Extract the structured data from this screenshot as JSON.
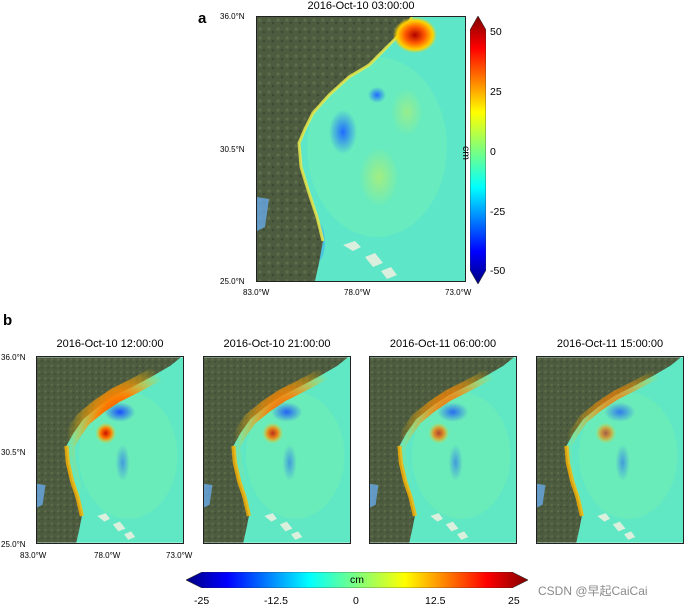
{
  "panel_a": {
    "letter": "a",
    "title": "2016-Oct-10 03:00:00",
    "lat_ticks": [
      "36.0°N",
      "30.5°N",
      "25.0°N"
    ],
    "lon_ticks": [
      "83.0°W",
      "78.0°W",
      "73.0°W"
    ],
    "colorbar": {
      "label": "cm",
      "ticks": [
        "50",
        "25",
        "0",
        "-25",
        "-50"
      ],
      "range": [
        -50,
        50
      ]
    },
    "surge_level": 1.0
  },
  "panel_b": {
    "letter": "b",
    "maps": [
      {
        "title": "2016-Oct-10 12:00:00",
        "surge_level": 1.0
      },
      {
        "title": "2016-Oct-10 21:00:00",
        "surge_level": 0.75
      },
      {
        "title": "2016-Oct-11 06:00:00",
        "surge_level": 0.6
      },
      {
        "title": "2016-Oct-11 15:00:00",
        "surge_level": 0.4
      }
    ],
    "lat_ticks": [
      "36.0°N",
      "30.5°N",
      "25.0°N"
    ],
    "lon_ticks": [
      "83.0°W",
      "78.0°W",
      "73.0°W"
    ],
    "colorbar": {
      "label": "cm",
      "ticks": [
        "-25",
        "-12.5",
        "0",
        "12.5",
        "25"
      ],
      "range": [
        -25,
        25
      ]
    }
  },
  "watermark": "CSDN @早起CaiCai",
  "colors": {
    "land": "#4a5a3c",
    "ocean_base": "#5ce8c6",
    "jet_low": "#00007f",
    "jet_high": "#7f0000"
  }
}
